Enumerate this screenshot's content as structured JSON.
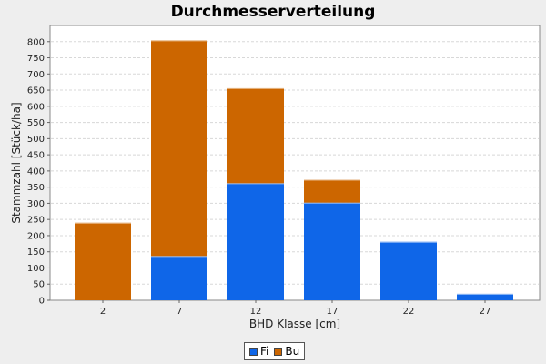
{
  "chart_data": {
    "type": "bar",
    "stacked": true,
    "title": "Durchmesserverteilung",
    "xlabel": "BHD Klasse [cm]",
    "ylabel": "Stammzahl [Stück/ha]",
    "categories": [
      "2",
      "7",
      "12",
      "17",
      "22",
      "27"
    ],
    "series": [
      {
        "name": "Fi",
        "color": "#0f66e8",
        "values": [
          0,
          137,
          362,
          302,
          181,
          20
        ]
      },
      {
        "name": "Bu",
        "color": "#cc6600",
        "values": [
          240,
          667,
          294,
          71,
          0,
          0
        ]
      }
    ],
    "ylim": [
      0,
      850
    ],
    "yticks": [
      0,
      50,
      100,
      150,
      200,
      250,
      300,
      350,
      400,
      450,
      500,
      550,
      600,
      650,
      700,
      750,
      800
    ],
    "grid": true,
    "legend": "bottom-center"
  }
}
